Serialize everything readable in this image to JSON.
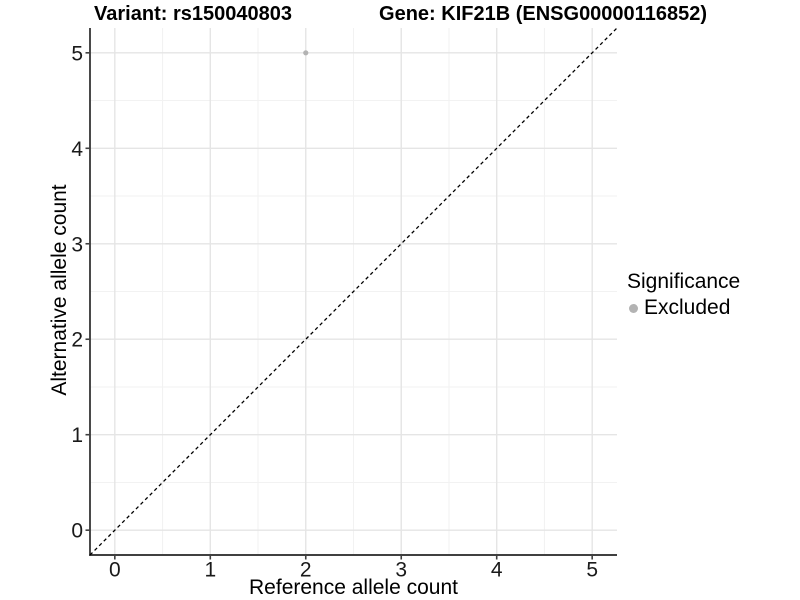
{
  "titles": {
    "variant": "Variant: rs150040803",
    "gene": "Gene: KIF21B (ENSG00000116852)"
  },
  "legend": {
    "title": "Significance",
    "position": "right",
    "items": [
      {
        "label": "Excluded",
        "marker": "circle",
        "color": "#b3b3b3"
      }
    ]
  },
  "chart_data": {
    "type": "scatter",
    "xlabel": "Reference allele count",
    "ylabel": "Alternative allele count",
    "xlim": [
      -0.26,
      5.26
    ],
    "ylim": [
      -0.26,
      5.26
    ],
    "xticks": [
      0,
      1,
      2,
      3,
      4,
      5
    ],
    "yticks": [
      0,
      1,
      2,
      3,
      4,
      5
    ],
    "minor_step": 0.5,
    "grid": "major+minor",
    "legend_position": "right",
    "points": [
      {
        "x": 2,
        "y": 5,
        "series": "Excluded",
        "color": "#b3b3b3"
      }
    ],
    "reference_line": {
      "slope": 1,
      "intercept": 0,
      "style": "dashed",
      "color": "#000000"
    },
    "colors": {
      "background": "#ffffff",
      "grid_major": "#e5e5e5",
      "grid_minor": "#f2f2f2",
      "axis": "#404040",
      "tick_label": "#1a1a1a"
    }
  }
}
